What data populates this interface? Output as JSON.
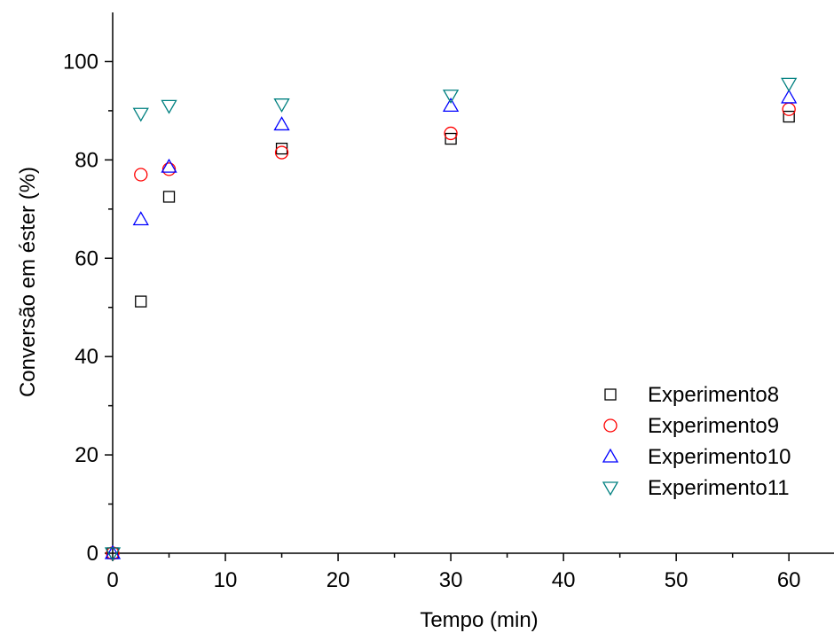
{
  "chart_data": {
    "type": "scatter",
    "title": "",
    "xlabel": "Tempo (min)",
    "ylabel": "Conversão em éster (%)",
    "xlim": [
      0,
      64
    ],
    "ylim": [
      0,
      110
    ],
    "xticks": [
      0,
      10,
      20,
      30,
      40,
      50,
      60
    ],
    "yticks": [
      0,
      20,
      40,
      60,
      80,
      100
    ],
    "grid": false,
    "legend_position": "bottom-right",
    "series": [
      {
        "name": "Experimento8",
        "marker": "square",
        "color": "#000000",
        "points": [
          [
            0,
            0
          ],
          [
            2.5,
            51.2
          ],
          [
            5,
            72.5
          ],
          [
            15,
            82.3
          ],
          [
            30,
            84.3
          ],
          [
            60,
            88.8
          ]
        ]
      },
      {
        "name": "Experimento9",
        "marker": "circle",
        "color": "#ff0000",
        "points": [
          [
            0,
            0
          ],
          [
            2.5,
            77.0
          ],
          [
            5,
            78.1
          ],
          [
            15,
            81.5
          ],
          [
            30,
            85.4
          ],
          [
            60,
            90.3
          ]
        ]
      },
      {
        "name": "Experimento10",
        "marker": "triangle-up",
        "color": "#0000ff",
        "points": [
          [
            0,
            0
          ],
          [
            2.5,
            67.9
          ],
          [
            5,
            78.6
          ],
          [
            15,
            87.2
          ],
          [
            30,
            91.0
          ],
          [
            60,
            92.7
          ]
        ]
      },
      {
        "name": "Experimento11",
        "marker": "triangle-down",
        "color": "#008080",
        "points": [
          [
            0,
            0
          ],
          [
            2.5,
            89.4
          ],
          [
            5,
            91.0
          ],
          [
            15,
            91.3
          ],
          [
            30,
            93.1
          ],
          [
            60,
            95.5
          ]
        ]
      }
    ]
  }
}
